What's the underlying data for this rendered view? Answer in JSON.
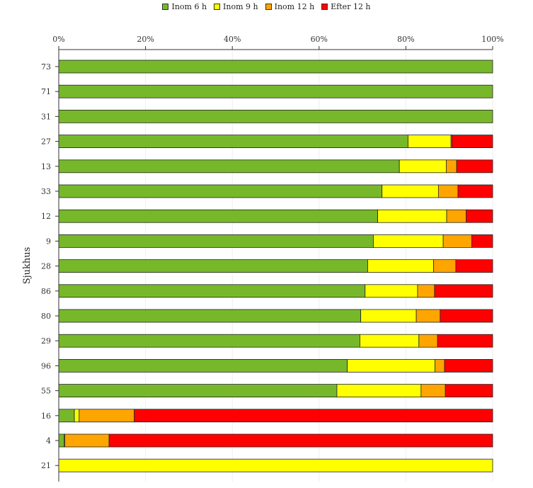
{
  "chart_data": {
    "type": "bar",
    "orientation": "horizontal",
    "stacked": true,
    "title": "",
    "xlabel": "",
    "ylabel": "Sjukhus",
    "xlim": [
      0,
      100
    ],
    "x_ticks": [
      "0%",
      "20%",
      "40%",
      "60%",
      "80%",
      "100%"
    ],
    "legend_position": "top",
    "grid": true,
    "categories": [
      "73",
      "71",
      "31",
      "27",
      "13",
      "33",
      "12",
      "9",
      "28",
      "86",
      "80",
      "29",
      "96",
      "55",
      "16",
      "4",
      "21"
    ],
    "series": [
      {
        "name": "Inom 6 h",
        "color": "#77b82a",
        "values": [
          100,
          100,
          100,
          80.5,
          78.5,
          74.5,
          73.5,
          72.5,
          71.2,
          70.6,
          69.6,
          69.4,
          66.5,
          64.1,
          3.6,
          1.2,
          0
        ]
      },
      {
        "name": "Inom 9 h",
        "color": "#ffff00",
        "values": [
          0,
          0,
          0,
          9.9,
          10.8,
          13.0,
          15.9,
          16.1,
          15.2,
          12.1,
          12.8,
          13.6,
          20.2,
          19.4,
          1.1,
          0.2,
          100
        ]
      },
      {
        "name": "Inom 12 h",
        "color": "#ffa500",
        "values": [
          0,
          0,
          0,
          0.2,
          2.4,
          4.5,
          4.5,
          6.6,
          5.1,
          3.9,
          5.5,
          4.3,
          2.2,
          5.6,
          12.7,
          10.2,
          0
        ]
      },
      {
        "name": "Efter 12 h",
        "color": "#ff0000",
        "values": [
          0,
          0,
          0,
          9.4,
          8.3,
          8.0,
          6.1,
          4.8,
          8.5,
          13.4,
          12.1,
          12.7,
          11.1,
          10.9,
          82.6,
          88.4,
          0
        ]
      }
    ]
  }
}
